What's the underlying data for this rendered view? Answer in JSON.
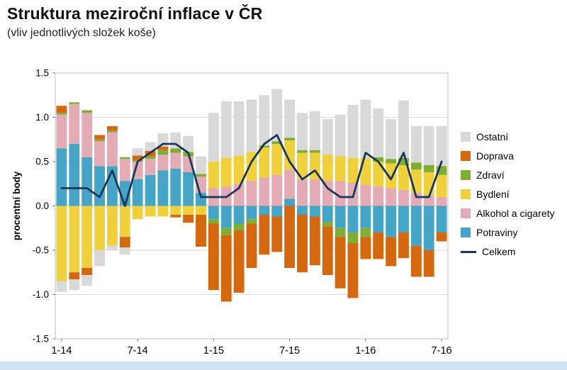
{
  "page": {
    "title": "Struktura meziroční inflace v ČR",
    "subtitle": "(vliv jednotlivých složek koše)"
  },
  "chart_data": {
    "type": "bar",
    "stacked": true,
    "title": "Struktura meziroční inflace v ČR",
    "subtitle": "(vliv jednotlivých složek koše)",
    "ylabel": "procentní body",
    "xlabel": "",
    "ylim": [
      -1.5,
      1.5
    ],
    "ytick_step": 0.5,
    "grid": true,
    "legend_position": "right",
    "categories": [
      "1-14",
      "2-14",
      "3-14",
      "4-14",
      "5-14",
      "6-14",
      "7-14",
      "8-14",
      "9-14",
      "10-14",
      "11-14",
      "12-14",
      "1-15",
      "2-15",
      "3-15",
      "4-15",
      "5-15",
      "6-15",
      "7-15",
      "8-15",
      "9-15",
      "10-15",
      "11-15",
      "12-15",
      "1-16",
      "2-16",
      "3-16",
      "4-16",
      "5-16",
      "6-16",
      "7-16"
    ],
    "x_ticks_shown": [
      "1-14",
      "7-14",
      "1-15",
      "7-15",
      "1-16",
      "7-16"
    ],
    "series": [
      {
        "name": "Potraviny",
        "color": "#45a5c6",
        "values": [
          0.65,
          0.7,
          0.55,
          0.45,
          0.45,
          0.28,
          0.3,
          0.35,
          0.4,
          0.42,
          0.38,
          0.15,
          -0.15,
          -0.25,
          -0.2,
          -0.15,
          -0.1,
          -0.12,
          0.08,
          -0.1,
          -0.12,
          -0.18,
          -0.25,
          -0.3,
          -0.25,
          -0.3,
          -0.35,
          -0.3,
          -0.45,
          -0.5,
          -0.3
        ]
      },
      {
        "name": "Alkohol a cigarety",
        "color": "#e4abb5",
        "values": [
          0.38,
          0.45,
          0.5,
          0.28,
          0.38,
          0.25,
          0.2,
          0.18,
          0.18,
          0.18,
          0.18,
          0.18,
          0.2,
          0.22,
          0.25,
          0.28,
          0.32,
          0.35,
          0.33,
          0.3,
          0.3,
          0.28,
          0.28,
          0.26,
          0.24,
          0.22,
          0.2,
          0.18,
          0.15,
          0.12,
          0.1
        ]
      },
      {
        "name": "Bydlení",
        "color": "#f0d13c",
        "values": [
          -0.85,
          -0.75,
          -0.7,
          -0.5,
          -0.45,
          -0.35,
          -0.15,
          -0.12,
          -0.12,
          -0.1,
          -0.1,
          -0.1,
          0.3,
          0.32,
          0.32,
          0.33,
          0.34,
          0.35,
          0.33,
          0.3,
          0.3,
          0.3,
          0.28,
          0.28,
          0.3,
          0.28,
          0.28,
          0.28,
          0.26,
          0.26,
          0.25
        ]
      },
      {
        "name": "Zdraví",
        "color": "#7fae33",
        "values": [
          0.02,
          0.02,
          0.03,
          0.02,
          0.02,
          0.02,
          0.02,
          0.03,
          0.05,
          0.05,
          0.05,
          0.03,
          -0.05,
          -0.08,
          -0.08,
          -0.05,
          0.02,
          0.03,
          0.03,
          0.03,
          0.03,
          -0.05,
          -0.1,
          -0.12,
          -0.1,
          0.05,
          0.05,
          0.08,
          0.08,
          0.08,
          0.1
        ]
      },
      {
        "name": "Doprava",
        "color": "#d5670f",
        "values": [
          0.08,
          -0.08,
          -0.08,
          0.05,
          0.05,
          -0.12,
          0.05,
          0.06,
          0.04,
          -0.03,
          -0.09,
          -0.36,
          -0.75,
          -0.75,
          -0.7,
          -0.5,
          -0.45,
          -0.4,
          -0.7,
          -0.65,
          -0.55,
          -0.55,
          -0.58,
          -0.62,
          -0.25,
          -0.3,
          -0.33,
          -0.29,
          -0.35,
          -0.3,
          -0.1
        ]
      },
      {
        "name": "Ostatní",
        "color": "#d9d9d9",
        "values": [
          -0.12,
          -0.12,
          -0.12,
          -0.18,
          -0.05,
          -0.08,
          0.08,
          0.1,
          0.15,
          0.18,
          0.18,
          0.2,
          0.55,
          0.64,
          0.61,
          0.59,
          0.57,
          0.59,
          0.43,
          0.42,
          0.44,
          0.4,
          0.47,
          0.6,
          0.66,
          0.55,
          0.45,
          0.65,
          0.41,
          0.44,
          0.45
        ]
      }
    ],
    "line_series": {
      "name": "Celkem",
      "color": "#17375e",
      "values": [
        0.2,
        0.2,
        0.2,
        0.1,
        0.4,
        0.0,
        0.5,
        0.6,
        0.7,
        0.7,
        0.6,
        0.1,
        0.1,
        0.1,
        0.2,
        0.5,
        0.7,
        0.8,
        0.5,
        0.3,
        0.4,
        0.2,
        0.1,
        0.1,
        0.6,
        0.5,
        0.3,
        0.6,
        0.1,
        0.1,
        0.5
      ]
    },
    "legend": [
      "Ostatní",
      "Doprava",
      "Zdraví",
      "Bydlení",
      "Alkohol a cigarety",
      "Potraviny",
      "Celkem"
    ]
  }
}
